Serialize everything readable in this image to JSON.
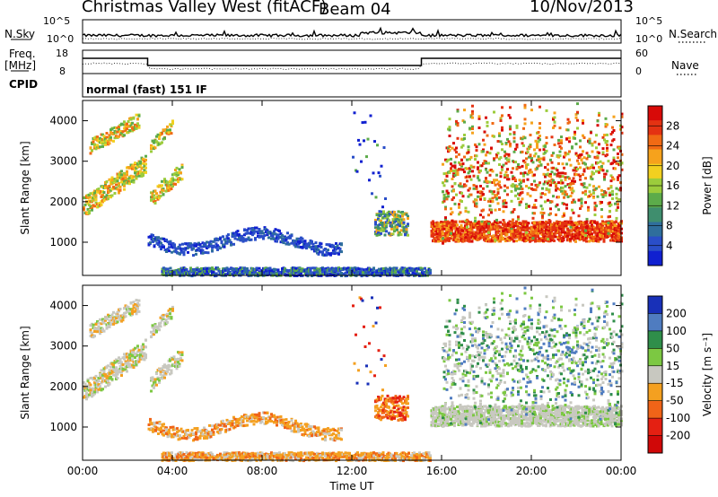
{
  "header": {
    "title": "Christmas Valley West (fitACF)",
    "beam": "Beam 04",
    "date": "10/Nov/2013"
  },
  "status_panels": {
    "nsky_label": "N.Sky",
    "nsearch_label": "N.Search",
    "noise_ticks": [
      "10^5",
      "10^0"
    ],
    "freq_label": "Freq.",
    "freq_unit": "[MHz]",
    "freq_ticks": [
      "18",
      "8"
    ],
    "nave_label": "Nave",
    "nave_ticks": [
      "60",
      "0"
    ],
    "cpid_label": "CPID",
    "cpid_value": "normal (fast) 151 IF"
  },
  "chart_data": [
    {
      "type": "heatmap",
      "name": "power",
      "ylabel": "Slant Range [km]",
      "yticks": [
        1000,
        2000,
        3000,
        4000
      ],
      "ylim": [
        180,
        4500
      ],
      "colorbar": {
        "label": "Power [dB]",
        "ticks": [
          4,
          8,
          12,
          16,
          20,
          24,
          28
        ],
        "range": [
          0,
          32
        ],
        "colors": [
          "#1020d0",
          "#2a4ec8",
          "#2f6e9c",
          "#3f8e6e",
          "#5cab4a",
          "#9ccc3c",
          "#f2d020",
          "#f6a21c",
          "#f06a14",
          "#e43212",
          "#d80a08"
        ]
      }
    },
    {
      "type": "heatmap",
      "name": "velocity",
      "ylabel": "Slant Range [km]",
      "yticks": [
        1000,
        2000,
        3000,
        4000
      ],
      "ylim": [
        180,
        4500
      ],
      "colorbar": {
        "label": "Velocity [m s⁻¹]",
        "ticks": [
          200,
          100,
          50,
          15,
          -15,
          -50,
          -100,
          -200
        ],
        "colors": [
          "#1830b8",
          "#4f7cc0",
          "#2f8e4a",
          "#7cc842",
          "#c8c8c0",
          "#f4a020",
          "#f06418",
          "#e42012",
          "#d00808"
        ]
      },
      "xlabel": "Time UT",
      "xticks": [
        "00:00",
        "04:00",
        "08:00",
        "12:00",
        "16:00",
        "20:00",
        "00:00"
      ],
      "xlim_hours": [
        0,
        24
      ]
    }
  ]
}
